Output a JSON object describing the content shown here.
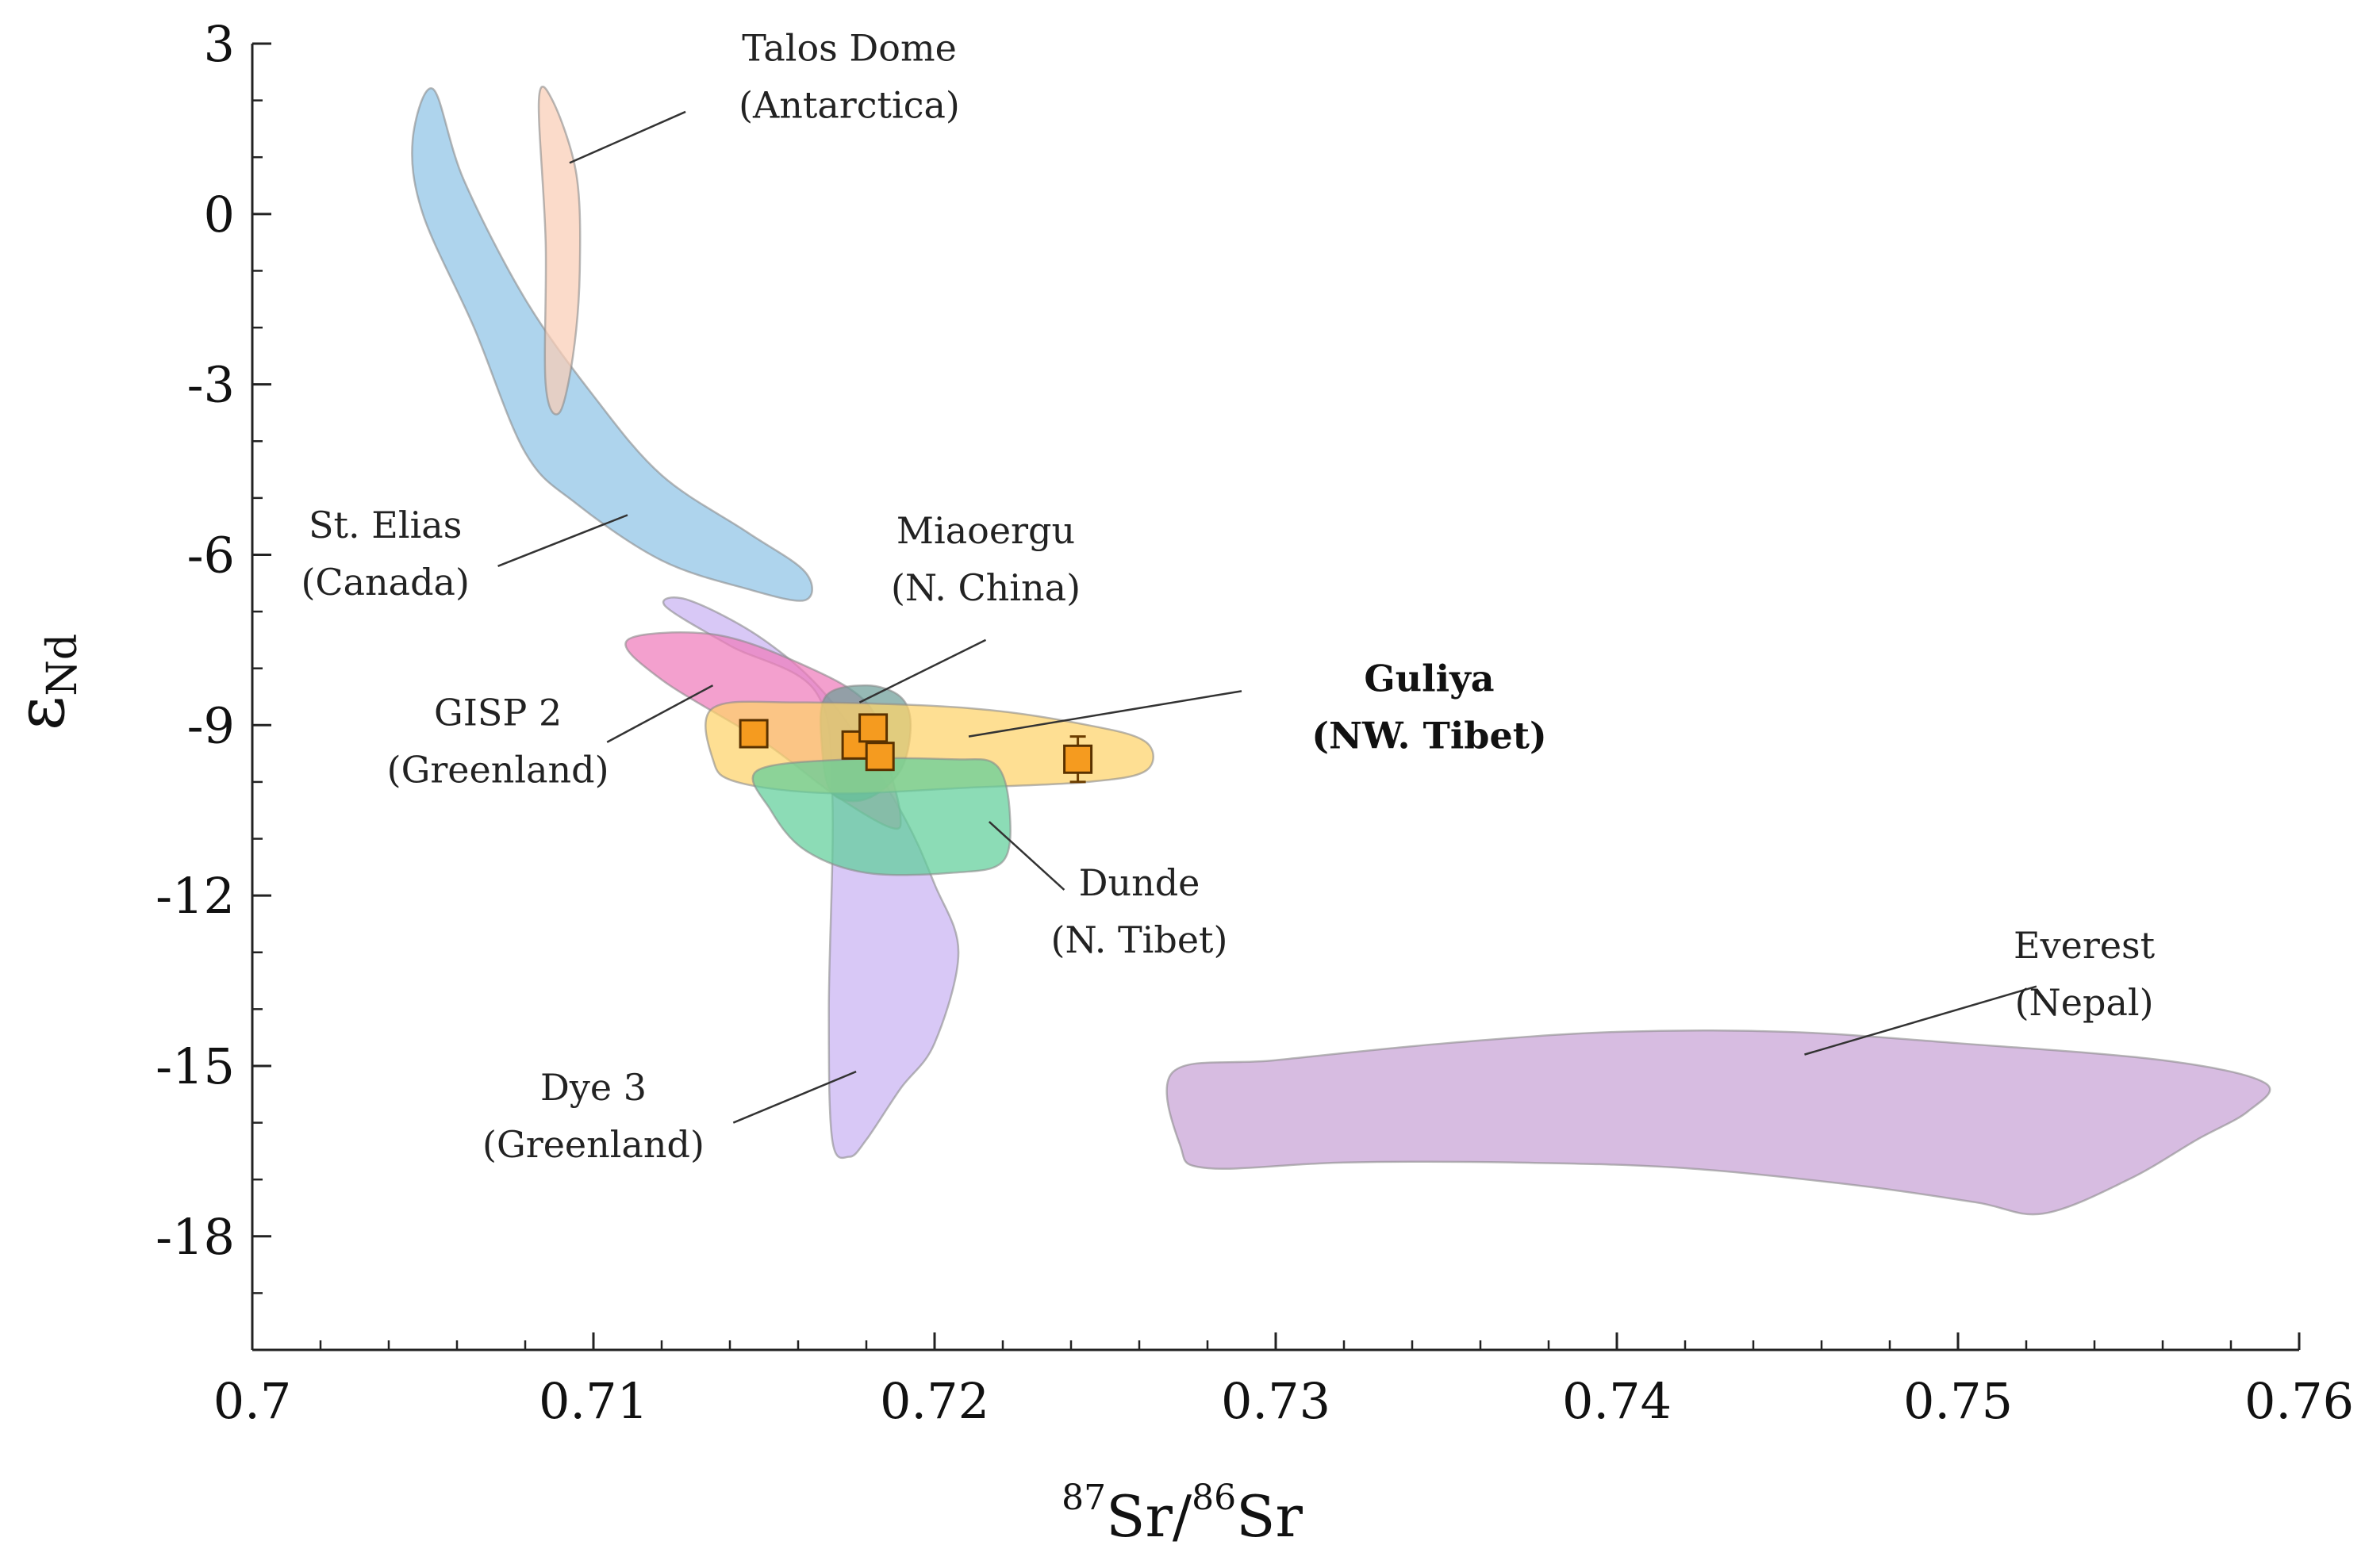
{
  "chart_data": {
    "type": "scatter",
    "xlabel": {
      "sup1": "87",
      "part1": "Sr/",
      "sup2": "86",
      "part2": "Sr"
    },
    "ylabel": {
      "main": "ε",
      "sub": "Nd"
    },
    "xlim": [
      0.7,
      0.76
    ],
    "ylim": [
      -20,
      3
    ],
    "xticks": [
      0.7,
      0.71,
      0.72,
      0.73,
      0.74,
      0.75,
      0.76
    ],
    "xtick_labels": [
      "0.7",
      "0.71",
      "0.72",
      "0.73",
      "0.74",
      "0.75",
      "0.76"
    ],
    "yticks": [
      3,
      0,
      -3,
      -6,
      -9,
      -12,
      -15,
      -18
    ],
    "ytick_labels": [
      "3",
      "0",
      "-3",
      "-6",
      "-9",
      "-12",
      "-15",
      "-18"
    ],
    "regions": [
      {
        "name": "St. Elias",
        "location": "(Canada)",
        "color": "#8fc3e6",
        "polygon": [
          [
            0.7047,
            1.3
          ],
          [
            0.7053,
            2.2
          ],
          [
            0.7062,
            0.6
          ],
          [
            0.708,
            -1.5
          ],
          [
            0.71,
            -3.2
          ],
          [
            0.712,
            -4.6
          ],
          [
            0.7145,
            -5.6
          ],
          [
            0.7162,
            -6.3
          ],
          [
            0.7162,
            -6.8
          ],
          [
            0.7145,
            -6.6
          ],
          [
            0.712,
            -6.1
          ],
          [
            0.7095,
            -5.1
          ],
          [
            0.708,
            -4.2
          ],
          [
            0.7065,
            -2.0
          ],
          [
            0.705,
            0.0
          ],
          [
            0.7047,
            1.3
          ]
        ]
      },
      {
        "name": "Talos Dome",
        "location": "(Antarctica)",
        "color": "#f9cdb5",
        "polygon": [
          [
            0.7084,
            2.0
          ],
          [
            0.7088,
            2.0
          ],
          [
            0.7095,
            0.7
          ],
          [
            0.7096,
            -1.0
          ],
          [
            0.7094,
            -2.5
          ],
          [
            0.709,
            -3.5
          ],
          [
            0.7086,
            -3.0
          ],
          [
            0.7086,
            -0.5
          ],
          [
            0.7084,
            2.0
          ]
        ]
      },
      {
        "name": "Dye 3",
        "location": "(Greenland)",
        "color": "#c9b3f2",
        "polygon": [
          [
            0.7121,
            -6.9
          ],
          [
            0.7128,
            -6.8
          ],
          [
            0.715,
            -7.5
          ],
          [
            0.717,
            -8.6
          ],
          [
            0.719,
            -10.5
          ],
          [
            0.72,
            -11.8
          ],
          [
            0.7207,
            -13.0
          ],
          [
            0.72,
            -14.6
          ],
          [
            0.719,
            -15.4
          ],
          [
            0.718,
            -16.3
          ],
          [
            0.7175,
            -16.6
          ],
          [
            0.717,
            -16.3
          ],
          [
            0.7169,
            -14.0
          ],
          [
            0.717,
            -10.2
          ],
          [
            0.7165,
            -8.4
          ],
          [
            0.714,
            -7.6
          ],
          [
            0.7121,
            -6.9
          ]
        ]
      },
      {
        "name": "GISP 2",
        "location": "(Greenland)",
        "color": "#ef7bbb",
        "polygon": [
          [
            0.711,
            -7.5
          ],
          [
            0.7135,
            -7.4
          ],
          [
            0.716,
            -7.9
          ],
          [
            0.718,
            -8.6
          ],
          [
            0.7186,
            -9.6
          ],
          [
            0.719,
            -10.6
          ],
          [
            0.7187,
            -10.8
          ],
          [
            0.717,
            -10.2
          ],
          [
            0.715,
            -9.3
          ],
          [
            0.712,
            -8.2
          ],
          [
            0.711,
            -7.5
          ]
        ]
      },
      {
        "name": "Miaoergu",
        "location": "(N. China)",
        "color": "#6d9e98",
        "polygon": [
          [
            0.7168,
            -8.5
          ],
          [
            0.718,
            -8.3
          ],
          [
            0.719,
            -8.5
          ],
          [
            0.7193,
            -9.0
          ],
          [
            0.719,
            -9.8
          ],
          [
            0.718,
            -10.3
          ],
          [
            0.717,
            -10.2
          ],
          [
            0.7167,
            -9.4
          ],
          [
            0.7168,
            -8.5
          ]
        ]
      },
      {
        "name": "Guliya",
        "location": "(NW. Tibet)",
        "color": "#fdd26a",
        "bold": true,
        "polygon": [
          [
            0.7135,
            -8.7
          ],
          [
            0.716,
            -8.6
          ],
          [
            0.721,
            -8.7
          ],
          [
            0.7245,
            -9.0
          ],
          [
            0.7262,
            -9.3
          ],
          [
            0.7262,
            -9.8
          ],
          [
            0.7245,
            -10.0
          ],
          [
            0.721,
            -10.1
          ],
          [
            0.717,
            -10.2
          ],
          [
            0.7142,
            -10.0
          ],
          [
            0.7135,
            -9.6
          ],
          [
            0.7135,
            -8.7
          ]
        ]
      },
      {
        "name": "Dunde",
        "location": "(N. Tibet)",
        "color": "#5fcf9a",
        "polygon": [
          [
            0.7148,
            -9.8
          ],
          [
            0.7175,
            -9.6
          ],
          [
            0.7205,
            -9.6
          ],
          [
            0.7218,
            -9.7
          ],
          [
            0.7222,
            -10.5
          ],
          [
            0.722,
            -11.4
          ],
          [
            0.7205,
            -11.6
          ],
          [
            0.718,
            -11.6
          ],
          [
            0.7162,
            -11.2
          ],
          [
            0.7152,
            -10.5
          ],
          [
            0.7148,
            -9.8
          ]
        ]
      },
      {
        "name": "Everest",
        "location": "(Nepal)",
        "color": "#c8a2d6",
        "polygon": [
          [
            0.727,
            -15.1
          ],
          [
            0.73,
            -14.9
          ],
          [
            0.735,
            -14.6
          ],
          [
            0.74,
            -14.4
          ],
          [
            0.745,
            -14.4
          ],
          [
            0.75,
            -14.6
          ],
          [
            0.756,
            -14.9
          ],
          [
            0.759,
            -15.3
          ],
          [
            0.7585,
            -15.8
          ],
          [
            0.757,
            -16.3
          ],
          [
            0.755,
            -17.0
          ],
          [
            0.7525,
            -17.6
          ],
          [
            0.7505,
            -17.4
          ],
          [
            0.747,
            -17.1
          ],
          [
            0.742,
            -16.8
          ],
          [
            0.737,
            -16.7
          ],
          [
            0.732,
            -16.7
          ],
          [
            0.728,
            -16.8
          ],
          [
            0.7272,
            -16.4
          ],
          [
            0.727,
            -15.1
          ]
        ]
      }
    ],
    "guliya_points": [
      {
        "x": 0.7147,
        "y": -9.15,
        "err": 0.0
      },
      {
        "x": 0.7177,
        "y": -9.35,
        "err": 0.1
      },
      {
        "x": 0.7182,
        "y": -9.05,
        "err": 0.1
      },
      {
        "x": 0.7184,
        "y": -9.55,
        "err": 0.2
      },
      {
        "x": 0.7242,
        "y": -9.6,
        "err": 0.4
      }
    ],
    "point_color": "#f59b1f",
    "label_positions": [
      {
        "name": "Talos Dome",
        "label": [
          0.7175,
          2.7
        ],
        "leader": [
          [
            0.7127,
            1.8
          ],
          [
            0.7093,
            0.9
          ]
        ]
      },
      {
        "name": "St. Elias",
        "label": [
          0.7039,
          -5.7
        ],
        "leader": [
          [
            0.7072,
            -6.2
          ],
          [
            0.711,
            -5.3
          ]
        ]
      },
      {
        "name": "Miaoergu",
        "label": [
          0.7215,
          -5.8
        ],
        "leader": [
          [
            0.7215,
            -7.5
          ],
          [
            0.7178,
            -8.6
          ]
        ]
      },
      {
        "name": "Guliya",
        "label": [
          0.7345,
          -8.4
        ],
        "leader": [
          [
            0.729,
            -8.4
          ],
          [
            0.721,
            -9.2
          ]
        ]
      },
      {
        "name": "GISP 2",
        "label": [
          0.7072,
          -9.0
        ],
        "leader": [
          [
            0.7104,
            -9.3
          ],
          [
            0.7135,
            -8.3
          ]
        ]
      },
      {
        "name": "Dunde",
        "label": [
          0.726,
          -12.0
        ],
        "leader": [
          [
            0.7238,
            -11.9
          ],
          [
            0.7216,
            -10.7
          ]
        ]
      },
      {
        "name": "Everest",
        "label": [
          0.7537,
          -13.1
        ],
        "leader": [
          [
            0.7523,
            -13.6
          ],
          [
            0.7455,
            -14.8
          ]
        ]
      },
      {
        "name": "Dye 3",
        "label": [
          0.71,
          -15.6
        ],
        "leader": [
          [
            0.7141,
            -16.0
          ],
          [
            0.7177,
            -15.1
          ]
        ]
      }
    ]
  }
}
